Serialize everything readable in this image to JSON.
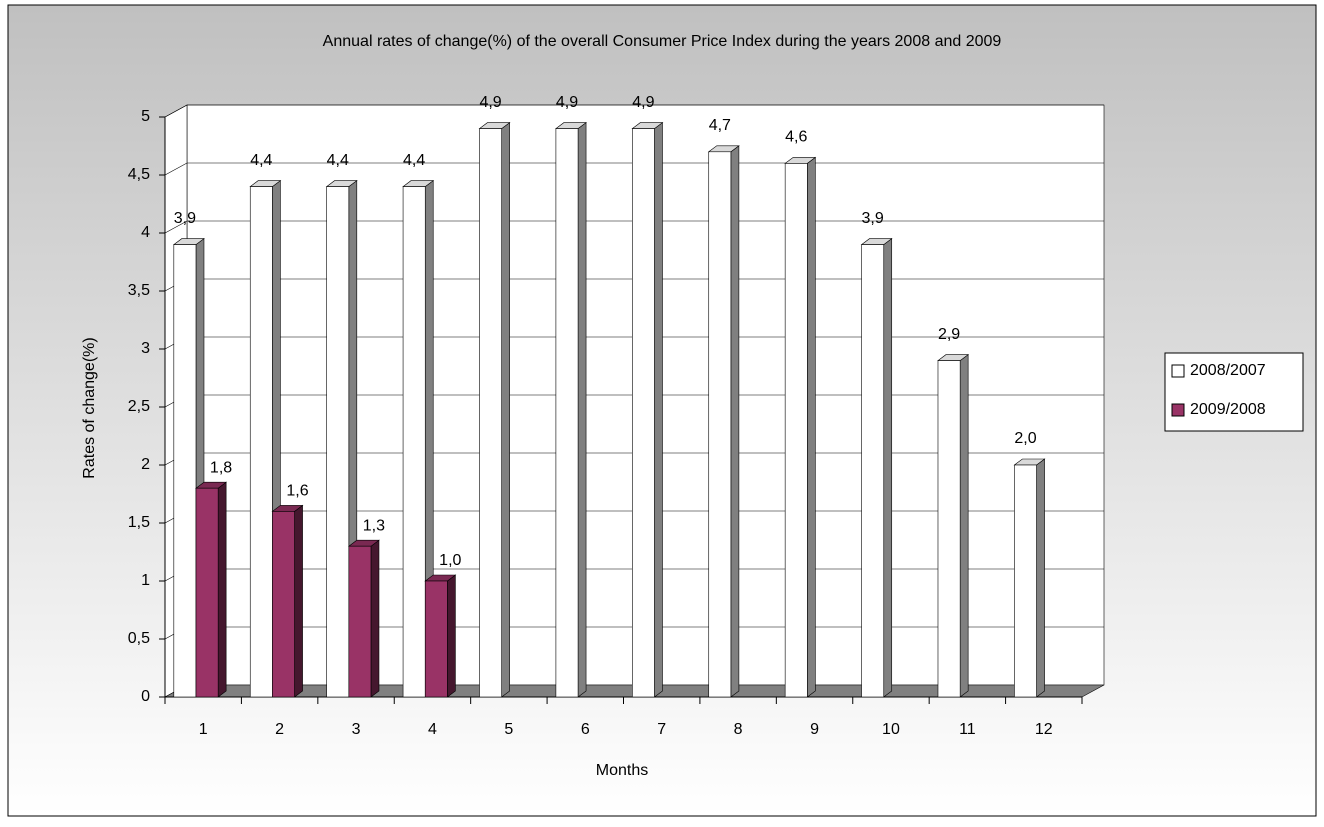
{
  "chart_data": {
    "type": "bar3d",
    "title": "Annual rates of change(%) of the overall Consumer Price Index during the years 2008 and 2009",
    "x_label": "Months",
    "y_label": "Rates of change(%)",
    "categories": [
      "1",
      "2",
      "3",
      "4",
      "5",
      "6",
      "7",
      "8",
      "9",
      "10",
      "11",
      "12"
    ],
    "series": [
      {
        "name": "2008/2007",
        "color": "#ffffff",
        "values": [
          3.9,
          4.4,
          4.4,
          4.4,
          4.9,
          4.9,
          4.9,
          4.7,
          4.6,
          3.9,
          2.9,
          2.0
        ],
        "value_labels": [
          "3,9",
          "4,4",
          "4,4",
          "4,4",
          "4,9",
          "4,9",
          "4,9",
          "4,7",
          "4,6",
          "3,9",
          "2,9",
          "2,0"
        ]
      },
      {
        "name": "2009/2008",
        "color": "#993366",
        "values": [
          1.8,
          1.6,
          1.3,
          1.0,
          null,
          null,
          null,
          null,
          null,
          null,
          null,
          null
        ],
        "value_labels": [
          "1,8",
          "1,6",
          "1,3",
          "1,0",
          null,
          null,
          null,
          null,
          null,
          null,
          null,
          null
        ]
      }
    ],
    "ylim": [
      0,
      5
    ],
    "yticks": [
      0,
      {
        "value": 0.5,
        "label": "0,5"
      },
      1,
      {
        "value": 1.5,
        "label": "1,5"
      },
      2,
      {
        "value": 2.5,
        "label": "2,5"
      },
      3,
      {
        "value": 3.5,
        "label": "3,5"
      },
      4,
      {
        "value": 4.5,
        "label": "4,5"
      },
      5
    ],
    "grid": true,
    "legend": "right"
  }
}
